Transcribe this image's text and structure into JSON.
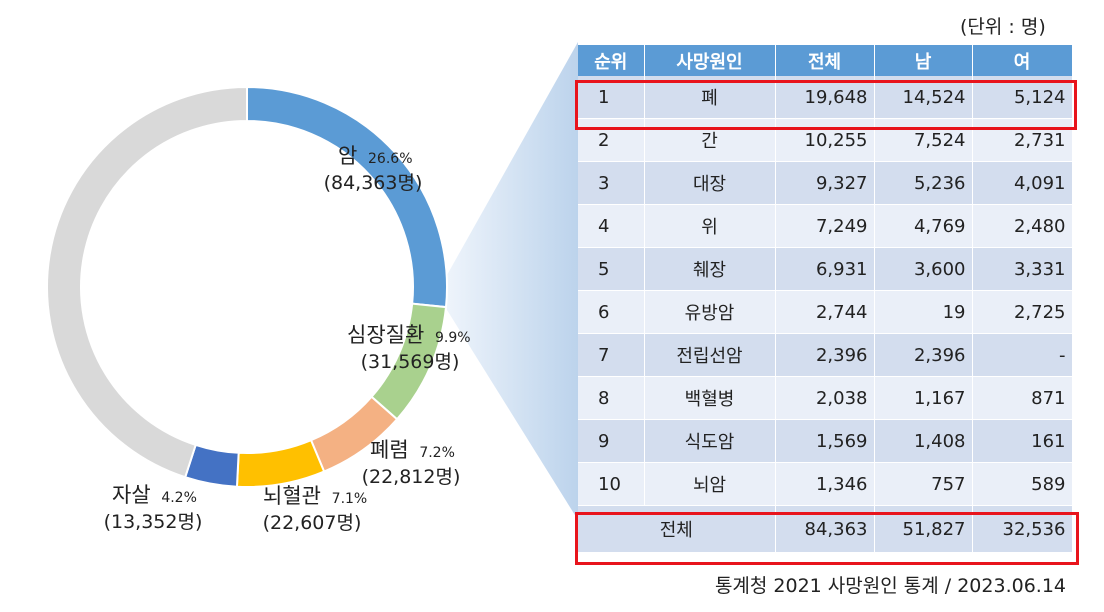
{
  "unit_label": "(단위 : 명)",
  "source": "통계청 2021 사망원인 통계 / 2023.06.14",
  "colors": {
    "cancer": "#5b9bd5",
    "heart": "#a9d18e",
    "pneumonia": "#f4b183",
    "stroke": "#ffc000",
    "suicide": "#4472c4",
    "others": "#d9d9d9",
    "table_header": "#5b9bd5",
    "row_dark": "#d3ddee",
    "row_light": "#eaeff8",
    "highlight": "#e8141c"
  },
  "chart_data": {
    "type": "pie",
    "style": "donut",
    "slices": [
      {
        "name": "암",
        "percent": 26.6,
        "percent_label": "26.6%",
        "count_label": "(84,363명)",
        "color": "#5b9bd5"
      },
      {
        "name": "심장질환",
        "percent": 9.9,
        "percent_label": "9.9%",
        "count_label": "(31,569명)",
        "color": "#a9d18e"
      },
      {
        "name": "폐렴",
        "percent": 7.2,
        "percent_label": "7.2%",
        "count_label": "(22,812명)",
        "color": "#f4b183"
      },
      {
        "name": "뇌혈관",
        "percent": 7.1,
        "percent_label": "7.1%",
        "count_label": "(22,607명)",
        "color": "#ffc000"
      },
      {
        "name": "자살",
        "percent": 4.2,
        "percent_label": "4.2%",
        "count_label": "(13,352명)",
        "color": "#4472c4"
      },
      {
        "name": "",
        "percent": 45.0,
        "percent_label": "",
        "count_label": "",
        "color": "#d9d9d9"
      }
    ]
  },
  "table": {
    "headers": [
      "순위",
      "사망원인",
      "전체",
      "남",
      "여"
    ],
    "rows": [
      [
        "1",
        "폐",
        "19,648",
        "14,524",
        "5,124"
      ],
      [
        "2",
        "간",
        "10,255",
        "7,524",
        "2,731"
      ],
      [
        "3",
        "대장",
        "9,327",
        "5,236",
        "4,091"
      ],
      [
        "4",
        "위",
        "7,249",
        "4,769",
        "2,480"
      ],
      [
        "5",
        "췌장",
        "6,931",
        "3,600",
        "3,331"
      ],
      [
        "6",
        "유방암",
        "2,744",
        "19",
        "2,725"
      ],
      [
        "7",
        "전립선암",
        "2,396",
        "2,396",
        "-"
      ],
      [
        "8",
        "백혈병",
        "2,038",
        "1,167",
        "871"
      ],
      [
        "9",
        "식도암",
        "1,569",
        "1,408",
        "161"
      ],
      [
        "10",
        "뇌암",
        "1,346",
        "757",
        "589"
      ]
    ],
    "total": [
      "전체",
      "84,363",
      "51,827",
      "32,536"
    ]
  }
}
